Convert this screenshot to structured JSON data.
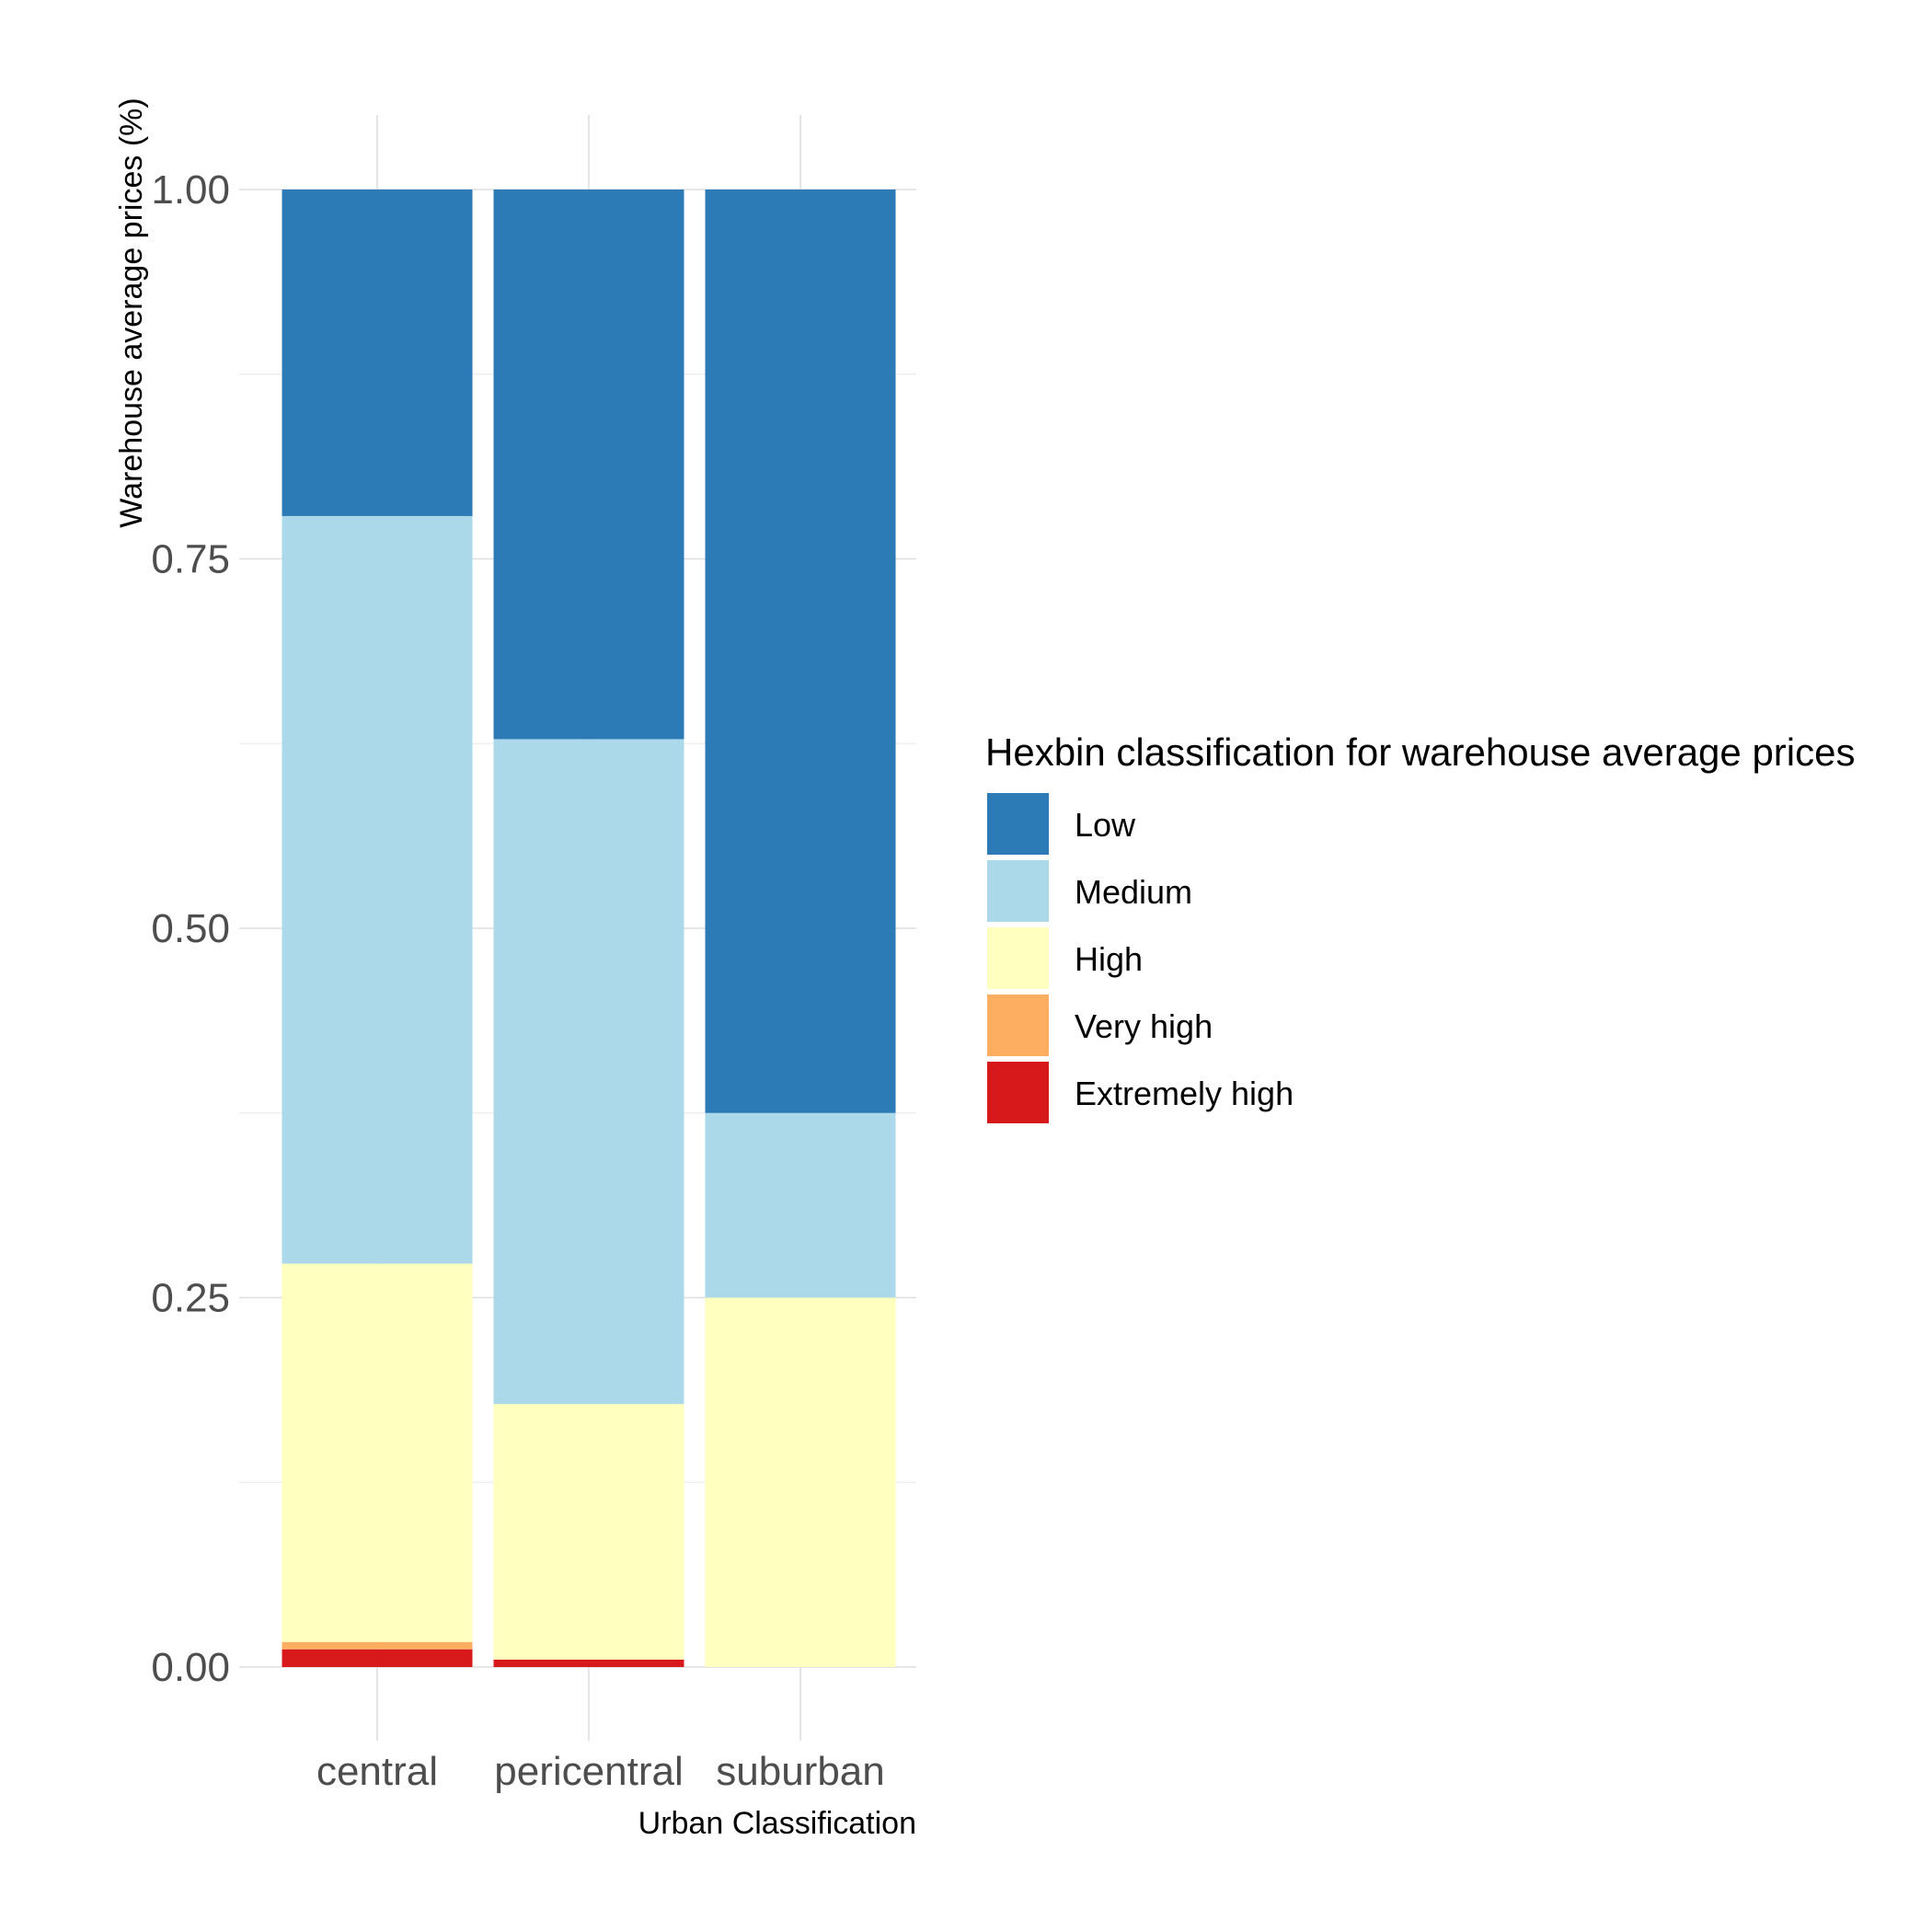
{
  "chart_data": {
    "type": "bar",
    "stacked": true,
    "categories": [
      "central",
      "pericentral",
      "suburban"
    ],
    "series": [
      {
        "name": "Extremely high",
        "color": "#d7191c",
        "values": [
          0.012,
          0.005,
          0.0
        ]
      },
      {
        "name": "Very high",
        "color": "#fdae61",
        "values": [
          0.005,
          0.0,
          0.0
        ]
      },
      {
        "name": "High",
        "color": "#ffffbf",
        "values": [
          0.256,
          0.173,
          0.25
        ]
      },
      {
        "name": "Medium",
        "color": "#abd9e9",
        "values": [
          0.506,
          0.45,
          0.125
        ]
      },
      {
        "name": "Low",
        "color": "#2c7bb6",
        "values": [
          0.221,
          0.372,
          0.625
        ]
      }
    ],
    "xlabel": "Urban Classification",
    "ylabel": "Warehouse average prices (%)",
    "ylim": [
      0,
      1
    ],
    "yticks": [
      "0.00",
      "0.25",
      "0.50",
      "0.75",
      "1.00"
    ],
    "ytick_values": [
      0,
      0.25,
      0.5,
      0.75,
      1.0
    ],
    "grid": true,
    "legend": {
      "title": "Hexbin classification for warehouse average prices",
      "position": "right",
      "order": [
        "Low",
        "Medium",
        "High",
        "Very high",
        "Extremely high"
      ]
    }
  }
}
